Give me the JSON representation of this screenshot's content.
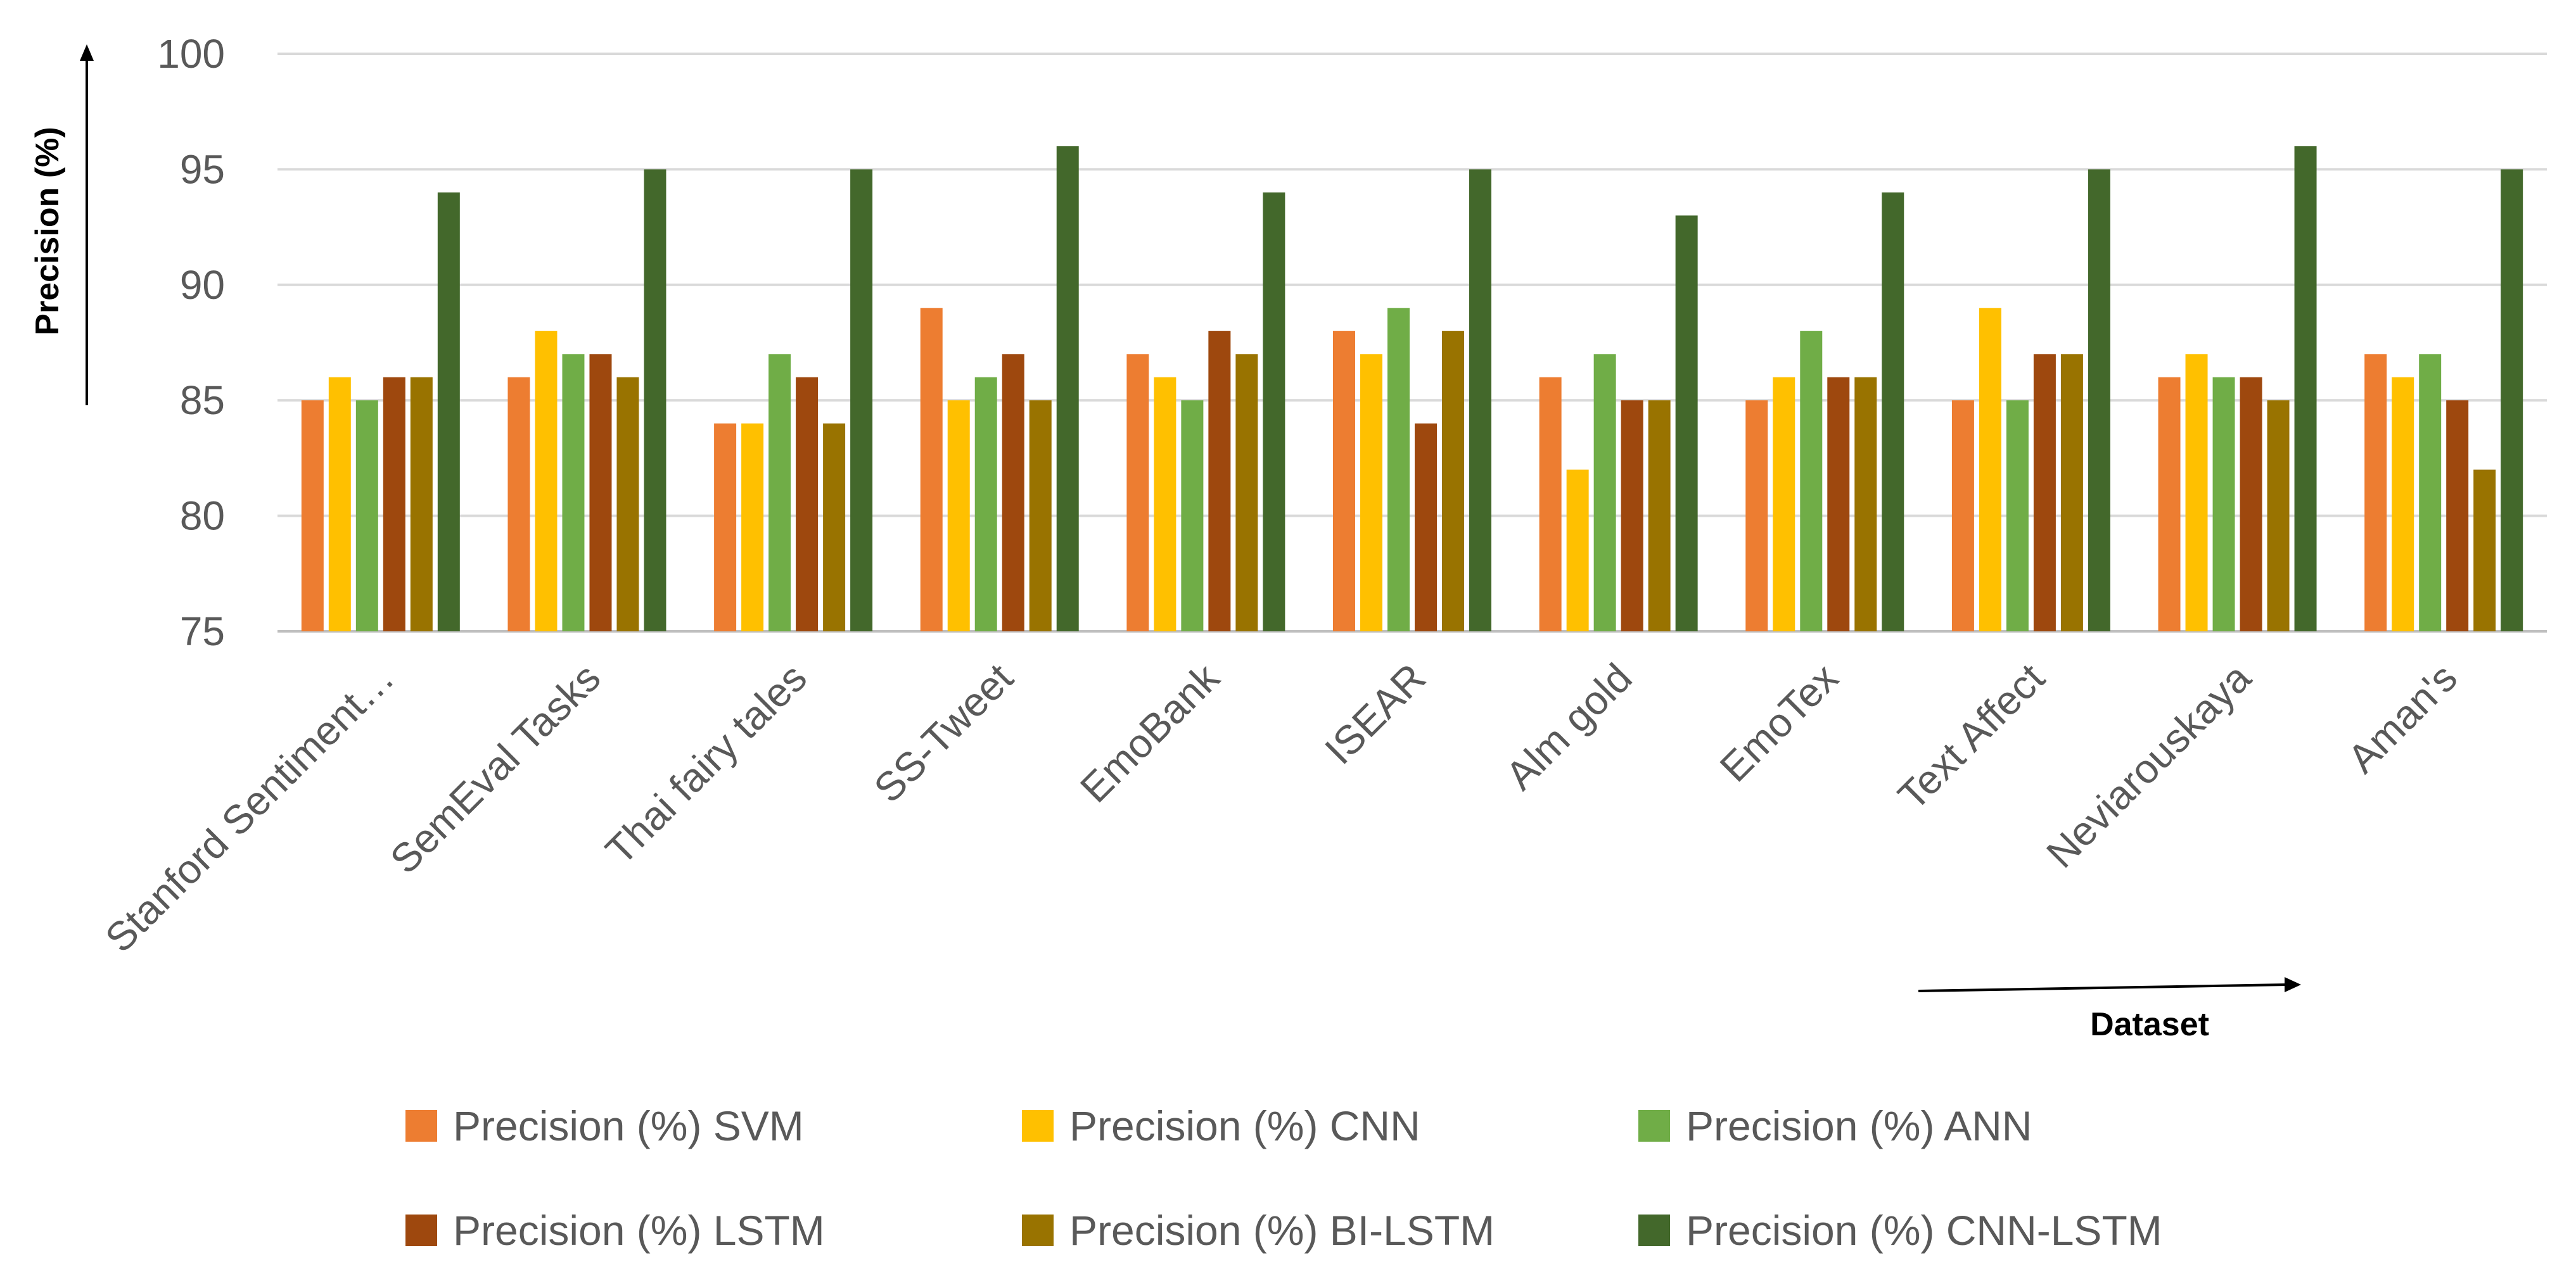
{
  "chart_data": {
    "type": "bar",
    "title": "",
    "ylabel": "Precision (%)",
    "xlabel": "Dataset",
    "ylim": [
      75,
      100
    ],
    "yticks": [
      75,
      80,
      85,
      90,
      95,
      100
    ],
    "grid": true,
    "legend_position": "bottom",
    "categories": [
      "Stanford Sentiment…",
      "SemEval Tasks",
      "Thai fairy tales",
      "SS-Tweet",
      "EmoBank",
      "ISEAR",
      "Alm gold",
      "EmoTex",
      "Text Affect",
      "Neviarouskaya",
      "Aman's"
    ],
    "series": [
      {
        "name": "Precision (%) SVM",
        "color": "#ED7D31",
        "values": [
          85,
          86,
          84,
          89,
          87,
          88,
          86,
          85,
          85,
          86,
          87
        ]
      },
      {
        "name": "Precision (%) CNN",
        "color": "#FFC000",
        "values": [
          86,
          88,
          84,
          85,
          86,
          87,
          82,
          86,
          89,
          87,
          86
        ]
      },
      {
        "name": "Precision (%) ANN",
        "color": "#70AD47",
        "values": [
          85,
          87,
          87,
          86,
          85,
          89,
          87,
          88,
          85,
          86,
          87
        ]
      },
      {
        "name": "Precision (%) LSTM",
        "color": "#9E480E",
        "values": [
          86,
          87,
          86,
          87,
          88,
          84,
          85,
          86,
          87,
          86,
          85
        ]
      },
      {
        "name": "Precision (%) BI-LSTM",
        "color": "#997300",
        "values": [
          86,
          86,
          84,
          85,
          87,
          88,
          85,
          86,
          87,
          85,
          82
        ]
      },
      {
        "name": "Precision (%) CNN-LSTM",
        "color": "#43682B",
        "values": [
          94,
          95,
          95,
          96,
          94,
          95,
          93,
          94,
          95,
          96,
          95
        ]
      }
    ]
  }
}
